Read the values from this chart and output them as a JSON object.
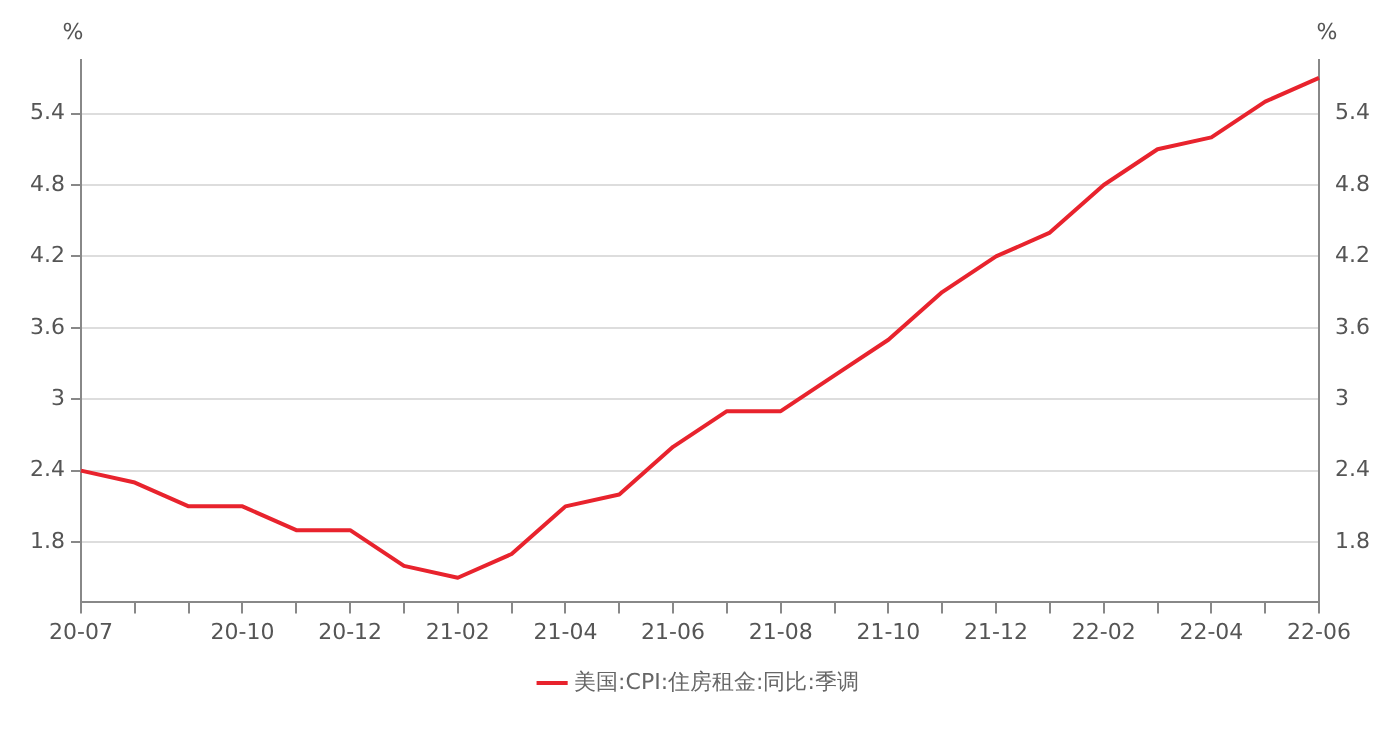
{
  "chart_data": {
    "type": "line",
    "ylabel": "%",
    "y2label": "%",
    "categories": [
      "20-07",
      null,
      null,
      "20-10",
      null,
      "20-12",
      null,
      "21-02",
      null,
      "21-04",
      null,
      "21-06",
      null,
      "21-08",
      null,
      "21-10",
      null,
      "21-12",
      null,
      "22-02",
      null,
      "22-04",
      null,
      "22-06"
    ],
    "series": [
      {
        "name": "美国:CPI:住房租金:同比:季调",
        "color": "#e8232d",
        "values": [
          2.4,
          2.3,
          2.1,
          2.1,
          1.9,
          1.9,
          1.6,
          1.5,
          1.7,
          2.1,
          2.2,
          2.6,
          2.9,
          2.9,
          3.2,
          3.5,
          3.9,
          4.2,
          4.4,
          4.8,
          5.1,
          5.2,
          5.5,
          5.7
        ]
      }
    ],
    "ylim": [
      1.3,
      5.85
    ],
    "yticks": [
      1.8,
      2.4,
      3,
      3.6,
      4.2,
      4.8,
      5.4
    ],
    "y2lim": [
      1.3,
      5.85
    ],
    "y2ticks": [
      1.8,
      2.4,
      3,
      3.6,
      4.2,
      4.8,
      5.4
    ],
    "grid": "y",
    "legend": "bottom",
    "marker": "none",
    "line_style": "solid"
  }
}
